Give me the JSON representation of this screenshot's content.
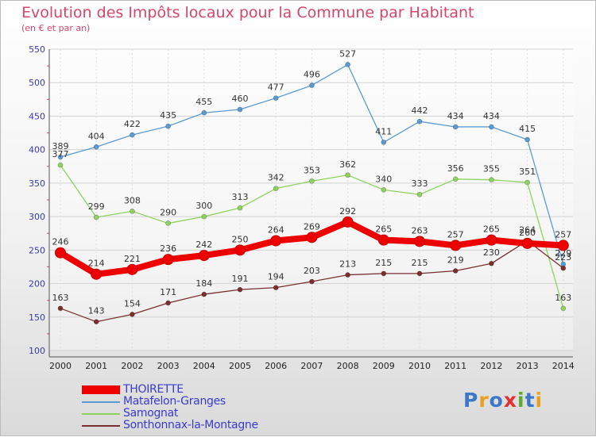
{
  "title": "Evolution des Impôts locaux pour la Commune par Habitant",
  "subtitle": "(en € et par an)",
  "logo": "Proxiti",
  "chart_data": {
    "type": "line",
    "title": "Evolution des Impôts locaux pour la Commune par Habitant",
    "subtitle": "(en € et par an)",
    "xlabel": "",
    "ylabel": "",
    "ylim": [
      100,
      550
    ],
    "yticks": [
      100,
      150,
      200,
      250,
      300,
      350,
      400,
      450,
      500,
      550
    ],
    "grid": true,
    "legend_position": "bottom-left",
    "x": [
      "2000",
      "2001",
      "2002",
      "2003",
      "2004",
      "2005",
      "2006",
      "2007",
      "2008",
      "2009",
      "2010",
      "2011",
      "2012",
      "2013",
      "2014"
    ],
    "series": [
      {
        "name": "THOIRETTE",
        "color": "#ee0000",
        "values": [
          246,
          214,
          221,
          236,
          242,
          250,
          264,
          269,
          292,
          265,
          263,
          257,
          265,
          260,
          257
        ]
      },
      {
        "name": "Matafelon-Granges",
        "color": "#5b9bd5",
        "values": [
          389,
          404,
          422,
          435,
          455,
          460,
          477,
          496,
          527,
          411,
          442,
          434,
          434,
          415,
          229
        ]
      },
      {
        "name": "Samognat",
        "color": "#8fd35f",
        "values": [
          377,
          299,
          308,
          290,
          300,
          313,
          342,
          353,
          362,
          340,
          333,
          356,
          355,
          351,
          163
        ]
      },
      {
        "name": "Sonthonnax-la-Montagne",
        "color": "#7a2f2f",
        "values": [
          163,
          143,
          154,
          171,
          184,
          191,
          194,
          203,
          213,
          215,
          215,
          219,
          230,
          264,
          223
        ]
      }
    ]
  }
}
